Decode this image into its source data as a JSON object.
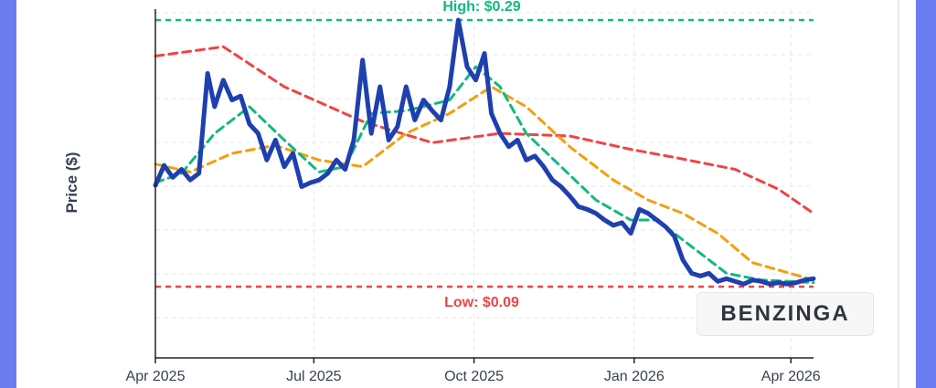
{
  "chart_data": {
    "type": "line",
    "title": "",
    "xlabel": "",
    "ylabel": "Price ($)",
    "x_ticks": [
      "Apr 2025",
      "Jul 2025",
      "Oct 2025",
      "Jan 2026",
      "Apr 2026"
    ],
    "x_range": [
      "2025-04-01",
      "2026-04-14"
    ],
    "ylim": [
      0.04,
      0.3
    ],
    "grid": true,
    "annotations": {
      "high": {
        "label": "High: $0.29",
        "value": 0.29,
        "color": "#10b981"
      },
      "low": {
        "label": "Low: $0.09",
        "value": 0.09,
        "color": "#ef4444"
      }
    },
    "watermark": "BENZINGA",
    "series": [
      {
        "color": "#1e40af",
        "points": [
          [
            "2025-04-01",
            0.166
          ],
          [
            "2025-04-06",
            0.181
          ],
          [
            "2025-04-11",
            0.172
          ],
          [
            "2025-04-16",
            0.178
          ],
          [
            "2025-04-21",
            0.17
          ],
          [
            "2025-04-26",
            0.175
          ],
          [
            "2025-05-01",
            0.25
          ],
          [
            "2025-05-05",
            0.225
          ],
          [
            "2025-05-10",
            0.245
          ],
          [
            "2025-05-15",
            0.23
          ],
          [
            "2025-05-20",
            0.233
          ],
          [
            "2025-05-25",
            0.212
          ],
          [
            "2025-05-30",
            0.205
          ],
          [
            "2025-06-04",
            0.185
          ],
          [
            "2025-06-09",
            0.2
          ],
          [
            "2025-06-14",
            0.18
          ],
          [
            "2025-06-19",
            0.19
          ],
          [
            "2025-06-24",
            0.165
          ],
          [
            "2025-06-29",
            0.168
          ],
          [
            "2025-07-04",
            0.17
          ],
          [
            "2025-07-09",
            0.175
          ],
          [
            "2025-07-14",
            0.185
          ],
          [
            "2025-07-19",
            0.178
          ],
          [
            "2025-07-24",
            0.2
          ],
          [
            "2025-07-29",
            0.26
          ],
          [
            "2025-08-03",
            0.205
          ],
          [
            "2025-08-08",
            0.24
          ],
          [
            "2025-08-13",
            0.2
          ],
          [
            "2025-08-18",
            0.21
          ],
          [
            "2025-08-23",
            0.24
          ],
          [
            "2025-08-28",
            0.215
          ],
          [
            "2025-09-02",
            0.23
          ],
          [
            "2025-09-07",
            0.222
          ],
          [
            "2025-09-12",
            0.215
          ],
          [
            "2025-09-17",
            0.24
          ],
          [
            "2025-09-22",
            0.29
          ],
          [
            "2025-09-27",
            0.255
          ],
          [
            "2025-10-02",
            0.245
          ],
          [
            "2025-10-07",
            0.265
          ],
          [
            "2025-10-11",
            0.22
          ],
          [
            "2025-10-16",
            0.205
          ],
          [
            "2025-10-21",
            0.195
          ],
          [
            "2025-10-26",
            0.2
          ],
          [
            "2025-10-31",
            0.185
          ],
          [
            "2025-11-05",
            0.188
          ],
          [
            "2025-11-10",
            0.18
          ],
          [
            "2025-11-15",
            0.17
          ],
          [
            "2025-11-20",
            0.165
          ],
          [
            "2025-11-25",
            0.158
          ],
          [
            "2025-11-30",
            0.15
          ],
          [
            "2025-12-05",
            0.148
          ],
          [
            "2025-12-10",
            0.145
          ],
          [
            "2025-12-15",
            0.14
          ],
          [
            "2025-12-20",
            0.136
          ],
          [
            "2025-12-25",
            0.138
          ],
          [
            "2025-12-30",
            0.13
          ],
          [
            "2026-01-04",
            0.148
          ],
          [
            "2026-01-09",
            0.145
          ],
          [
            "2026-01-14",
            0.14
          ],
          [
            "2026-01-19",
            0.135
          ],
          [
            "2026-01-24",
            0.128
          ],
          [
            "2026-01-29",
            0.11
          ],
          [
            "2026-02-03",
            0.1
          ],
          [
            "2026-02-08",
            0.098
          ],
          [
            "2026-02-13",
            0.1
          ],
          [
            "2026-02-18",
            0.094
          ],
          [
            "2026-02-23",
            0.096
          ],
          [
            "2026-02-28",
            0.094
          ],
          [
            "2026-03-05",
            0.092
          ],
          [
            "2026-03-10",
            0.095
          ],
          [
            "2026-03-15",
            0.094
          ],
          [
            "2026-03-20",
            0.092
          ],
          [
            "2026-03-25",
            0.093
          ],
          [
            "2026-03-30",
            0.092
          ],
          [
            "2026-04-04",
            0.093
          ],
          [
            "2026-04-09",
            0.095
          ],
          [
            "2026-04-14",
            0.096
          ]
        ]
      },
      {
        "color": "#10b981",
        "points": [
          [
            "2025-04-01",
            0.168
          ],
          [
            "2025-04-16",
            0.175
          ],
          [
            "2025-05-05",
            0.205
          ],
          [
            "2025-05-25",
            0.225
          ],
          [
            "2025-06-14",
            0.2
          ],
          [
            "2025-07-04",
            0.176
          ],
          [
            "2025-07-19",
            0.18
          ],
          [
            "2025-08-03",
            0.22
          ],
          [
            "2025-08-23",
            0.222
          ],
          [
            "2025-09-17",
            0.23
          ],
          [
            "2025-10-02",
            0.255
          ],
          [
            "2025-10-16",
            0.24
          ],
          [
            "2025-10-31",
            0.205
          ],
          [
            "2025-11-20",
            0.18
          ],
          [
            "2025-12-10",
            0.155
          ],
          [
            "2025-12-30",
            0.14
          ],
          [
            "2026-01-14",
            0.14
          ],
          [
            "2026-02-03",
            0.12
          ],
          [
            "2026-02-23",
            0.1
          ],
          [
            "2026-03-15",
            0.095
          ],
          [
            "2026-04-14",
            0.093
          ]
        ]
      },
      {
        "color": "#f59e0b",
        "points": [
          [
            "2025-04-01",
            0.182
          ],
          [
            "2025-04-21",
            0.176
          ],
          [
            "2025-05-15",
            0.19
          ],
          [
            "2025-06-09",
            0.196
          ],
          [
            "2025-07-04",
            0.185
          ],
          [
            "2025-07-29",
            0.18
          ],
          [
            "2025-08-23",
            0.205
          ],
          [
            "2025-09-17",
            0.22
          ],
          [
            "2025-10-11",
            0.24
          ],
          [
            "2025-10-31",
            0.225
          ],
          [
            "2025-11-25",
            0.195
          ],
          [
            "2025-12-20",
            0.17
          ],
          [
            "2026-01-09",
            0.155
          ],
          [
            "2026-01-29",
            0.145
          ],
          [
            "2026-02-18",
            0.13
          ],
          [
            "2026-03-10",
            0.108
          ],
          [
            "2026-04-14",
            0.095
          ]
        ]
      },
      {
        "color": "#ef4444",
        "points": [
          [
            "2025-04-01",
            0.263
          ],
          [
            "2025-05-10",
            0.27
          ],
          [
            "2025-06-14",
            0.24
          ],
          [
            "2025-07-29",
            0.214
          ],
          [
            "2025-09-07",
            0.198
          ],
          [
            "2025-10-16",
            0.205
          ],
          [
            "2025-11-25",
            0.203
          ],
          [
            "2025-12-30",
            0.193
          ],
          [
            "2026-01-24",
            0.187
          ],
          [
            "2026-02-28",
            0.178
          ],
          [
            "2026-03-25",
            0.163
          ],
          [
            "2026-04-14",
            0.145
          ]
        ]
      }
    ]
  }
}
